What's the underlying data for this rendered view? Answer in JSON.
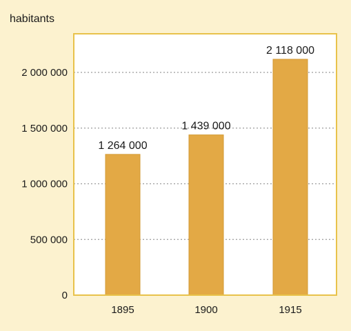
{
  "chart_data": {
    "type": "bar",
    "y_unit_label": "habitants",
    "categories": [
      "1895",
      "1900",
      "1915"
    ],
    "values": [
      1264000,
      1439000,
      2118000
    ],
    "value_labels": [
      "1 264 000",
      "1 439 000",
      "2 118 000"
    ],
    "ylim": [
      0,
      2000000
    ],
    "yticks": [
      0,
      500000,
      1000000,
      1500000,
      2000000
    ],
    "ytick_labels": [
      "0",
      "500 000",
      "1 000 000",
      "1 500 000",
      "2 000 000"
    ],
    "grid": true,
    "colors": {
      "background": "#fcf2cf",
      "plot_background": "#ffffff",
      "frame": "#e8c24a",
      "bar": "#e3a945",
      "bar_edge": "#d39a35",
      "grid": "#9a9a9a"
    }
  }
}
